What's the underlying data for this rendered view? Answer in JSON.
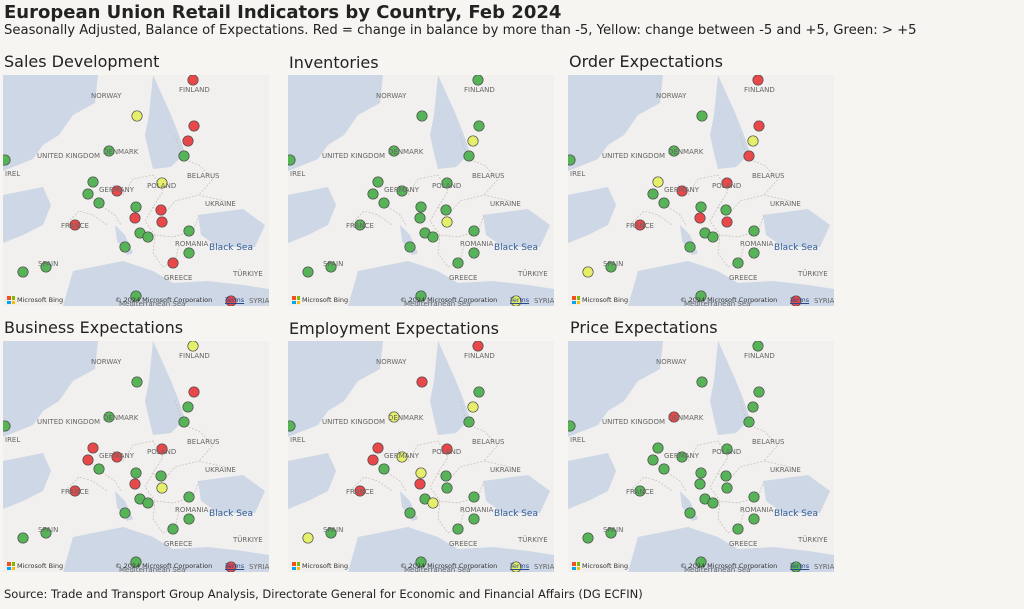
{
  "title": "European Union Retail Indicators by Country, Feb 2024",
  "subtitle": "Seasonally Adjusted, Balance of Expectations. Red = change in balance by more than -5, Yellow: change between -5 and +5, Green: > +5",
  "source": "Source: Trade and Transport Group Analysis, Directorate General for Economic and Financial Affairs (DG ECFIN)",
  "colors": {
    "red": "#e8484a",
    "yellow": "#e5ef6a",
    "green": "#57b357",
    "sea": "#cdd7e5",
    "land": "#f1f0ee"
  },
  "map_labels": {
    "norway": "NORWAY",
    "finland": "FINLAND",
    "united_kingdom": "UNITED KINGDOM",
    "ireland": "IREL",
    "denmark": "DENMARK",
    "germany": "GERMANY",
    "poland": "POLAND",
    "belarus": "BELARUS",
    "ukraine": "UKRAINE",
    "france": "FRANCE",
    "romania": "ROMANIA",
    "spain": "SPAIN",
    "greece": "GREECE",
    "turkiye": "TÜRKIYE",
    "syria": "SYRIA",
    "black_sea": "Black Sea",
    "mediterranean": "Mediterranean Sea"
  },
  "map_footer": {
    "bing": "Microsoft Bing",
    "copyright": "© 2024 Microsoft Corporation",
    "terms": "Terms"
  },
  "panels": [
    {
      "name": "Sales Development",
      "markers": [
        {
          "country": "Finland",
          "status": "red"
        },
        {
          "country": "Sweden",
          "status": "yellow"
        },
        {
          "country": "Estonia",
          "status": "red"
        },
        {
          "country": "Latvia",
          "status": "red"
        },
        {
          "country": "Lithuania",
          "status": "green"
        },
        {
          "country": "Denmark",
          "status": "green"
        },
        {
          "country": "Ireland",
          "status": "green"
        },
        {
          "country": "Netherlands",
          "status": "green"
        },
        {
          "country": "Belgium",
          "status": "green"
        },
        {
          "country": "Luxembourg",
          "status": "green"
        },
        {
          "country": "Germany",
          "status": "red"
        },
        {
          "country": "Poland",
          "status": "yellow"
        },
        {
          "country": "Czechia",
          "status": "green"
        },
        {
          "country": "Slovakia",
          "status": "red"
        },
        {
          "country": "Austria",
          "status": "red"
        },
        {
          "country": "Hungary",
          "status": "red"
        },
        {
          "country": "Slovenia",
          "status": "green"
        },
        {
          "country": "Croatia",
          "status": "green"
        },
        {
          "country": "Romania",
          "status": "green"
        },
        {
          "country": "France",
          "status": "red"
        },
        {
          "country": "Italy",
          "status": "green"
        },
        {
          "country": "Bulgaria",
          "status": "green"
        },
        {
          "country": "Greece",
          "status": "red"
        },
        {
          "country": "Spain",
          "status": "green"
        },
        {
          "country": "Portugal",
          "status": "green"
        },
        {
          "country": "Malta",
          "status": "green"
        },
        {
          "country": "Cyprus",
          "status": "red"
        }
      ]
    },
    {
      "name": "Inventories",
      "markers": [
        {
          "country": "Finland",
          "status": "green"
        },
        {
          "country": "Sweden",
          "status": "green"
        },
        {
          "country": "Estonia",
          "status": "green"
        },
        {
          "country": "Latvia",
          "status": "yellow"
        },
        {
          "country": "Lithuania",
          "status": "green"
        },
        {
          "country": "Denmark",
          "status": "green"
        },
        {
          "country": "Ireland",
          "status": "green"
        },
        {
          "country": "Netherlands",
          "status": "green"
        },
        {
          "country": "Belgium",
          "status": "green"
        },
        {
          "country": "Luxembourg",
          "status": "green"
        },
        {
          "country": "Germany",
          "status": "green"
        },
        {
          "country": "Poland",
          "status": "green"
        },
        {
          "country": "Czechia",
          "status": "green"
        },
        {
          "country": "Slovakia",
          "status": "green"
        },
        {
          "country": "Austria",
          "status": "green"
        },
        {
          "country": "Hungary",
          "status": "yellow"
        },
        {
          "country": "Slovenia",
          "status": "green"
        },
        {
          "country": "Croatia",
          "status": "green"
        },
        {
          "country": "Romania",
          "status": "green"
        },
        {
          "country": "France",
          "status": "green"
        },
        {
          "country": "Italy",
          "status": "green"
        },
        {
          "country": "Bulgaria",
          "status": "green"
        },
        {
          "country": "Greece",
          "status": "green"
        },
        {
          "country": "Spain",
          "status": "green"
        },
        {
          "country": "Portugal",
          "status": "green"
        },
        {
          "country": "Malta",
          "status": "green"
        },
        {
          "country": "Cyprus",
          "status": "yellow"
        }
      ]
    },
    {
      "name": "Order Expectations",
      "markers": [
        {
          "country": "Finland",
          "status": "red"
        },
        {
          "country": "Sweden",
          "status": "green"
        },
        {
          "country": "Estonia",
          "status": "red"
        },
        {
          "country": "Latvia",
          "status": "yellow"
        },
        {
          "country": "Lithuania",
          "status": "red"
        },
        {
          "country": "Denmark",
          "status": "green"
        },
        {
          "country": "Ireland",
          "status": "green"
        },
        {
          "country": "Netherlands",
          "status": "yellow"
        },
        {
          "country": "Belgium",
          "status": "green"
        },
        {
          "country": "Luxembourg",
          "status": "green"
        },
        {
          "country": "Germany",
          "status": "red"
        },
        {
          "country": "Poland",
          "status": "red"
        },
        {
          "country": "Czechia",
          "status": "green"
        },
        {
          "country": "Slovakia",
          "status": "green"
        },
        {
          "country": "Austria",
          "status": "red"
        },
        {
          "country": "Hungary",
          "status": "red"
        },
        {
          "country": "Slovenia",
          "status": "green"
        },
        {
          "country": "Croatia",
          "status": "green"
        },
        {
          "country": "Romania",
          "status": "green"
        },
        {
          "country": "France",
          "status": "red"
        },
        {
          "country": "Italy",
          "status": "green"
        },
        {
          "country": "Bulgaria",
          "status": "green"
        },
        {
          "country": "Greece",
          "status": "green"
        },
        {
          "country": "Spain",
          "status": "green"
        },
        {
          "country": "Portugal",
          "status": "yellow"
        },
        {
          "country": "Malta",
          "status": "green"
        },
        {
          "country": "Cyprus",
          "status": "red"
        }
      ]
    },
    {
      "name": "Business Expectations",
      "markers": [
        {
          "country": "Finland",
          "status": "yellow"
        },
        {
          "country": "Sweden",
          "status": "green"
        },
        {
          "country": "Estonia",
          "status": "red"
        },
        {
          "country": "Latvia",
          "status": "green"
        },
        {
          "country": "Lithuania",
          "status": "green"
        },
        {
          "country": "Denmark",
          "status": "green"
        },
        {
          "country": "Ireland",
          "status": "green"
        },
        {
          "country": "Netherlands",
          "status": "red"
        },
        {
          "country": "Belgium",
          "status": "red"
        },
        {
          "country": "Luxembourg",
          "status": "green"
        },
        {
          "country": "Germany",
          "status": "red"
        },
        {
          "country": "Poland",
          "status": "red"
        },
        {
          "country": "Czechia",
          "status": "green"
        },
        {
          "country": "Slovakia",
          "status": "green"
        },
        {
          "country": "Austria",
          "status": "red"
        },
        {
          "country": "Hungary",
          "status": "yellow"
        },
        {
          "country": "Slovenia",
          "status": "green"
        },
        {
          "country": "Croatia",
          "status": "green"
        },
        {
          "country": "Romania",
          "status": "green"
        },
        {
          "country": "France",
          "status": "red"
        },
        {
          "country": "Italy",
          "status": "green"
        },
        {
          "country": "Bulgaria",
          "status": "green"
        },
        {
          "country": "Greece",
          "status": "green"
        },
        {
          "country": "Spain",
          "status": "green"
        },
        {
          "country": "Portugal",
          "status": "green"
        },
        {
          "country": "Malta",
          "status": "green"
        },
        {
          "country": "Cyprus",
          "status": "red"
        }
      ]
    },
    {
      "name": "Employment Expectations",
      "markers": [
        {
          "country": "Finland",
          "status": "red"
        },
        {
          "country": "Sweden",
          "status": "red"
        },
        {
          "country": "Estonia",
          "status": "green"
        },
        {
          "country": "Latvia",
          "status": "yellow"
        },
        {
          "country": "Lithuania",
          "status": "green"
        },
        {
          "country": "Denmark",
          "status": "yellow"
        },
        {
          "country": "Ireland",
          "status": "green"
        },
        {
          "country": "Netherlands",
          "status": "red"
        },
        {
          "country": "Belgium",
          "status": "red"
        },
        {
          "country": "Luxembourg",
          "status": "green"
        },
        {
          "country": "Germany",
          "status": "yellow"
        },
        {
          "country": "Poland",
          "status": "red"
        },
        {
          "country": "Czechia",
          "status": "yellow"
        },
        {
          "country": "Slovakia",
          "status": "green"
        },
        {
          "country": "Austria",
          "status": "red"
        },
        {
          "country": "Hungary",
          "status": "green"
        },
        {
          "country": "Slovenia",
          "status": "green"
        },
        {
          "country": "Croatia",
          "status": "yellow"
        },
        {
          "country": "Romania",
          "status": "green"
        },
        {
          "country": "France",
          "status": "red"
        },
        {
          "country": "Italy",
          "status": "green"
        },
        {
          "country": "Bulgaria",
          "status": "green"
        },
        {
          "country": "Greece",
          "status": "green"
        },
        {
          "country": "Spain",
          "status": "green"
        },
        {
          "country": "Portugal",
          "status": "yellow"
        },
        {
          "country": "Malta",
          "status": "green"
        },
        {
          "country": "Cyprus",
          "status": "yellow"
        }
      ]
    },
    {
      "name": "Price Expectations",
      "markers": [
        {
          "country": "Finland",
          "status": "green"
        },
        {
          "country": "Sweden",
          "status": "green"
        },
        {
          "country": "Estonia",
          "status": "green"
        },
        {
          "country": "Latvia",
          "status": "green"
        },
        {
          "country": "Lithuania",
          "status": "green"
        },
        {
          "country": "Denmark",
          "status": "red"
        },
        {
          "country": "Ireland",
          "status": "green"
        },
        {
          "country": "Netherlands",
          "status": "green"
        },
        {
          "country": "Belgium",
          "status": "green"
        },
        {
          "country": "Luxembourg",
          "status": "green"
        },
        {
          "country": "Germany",
          "status": "green"
        },
        {
          "country": "Poland",
          "status": "green"
        },
        {
          "country": "Czechia",
          "status": "green"
        },
        {
          "country": "Slovakia",
          "status": "green"
        },
        {
          "country": "Austria",
          "status": "green"
        },
        {
          "country": "Hungary",
          "status": "green"
        },
        {
          "country": "Slovenia",
          "status": "green"
        },
        {
          "country": "Croatia",
          "status": "green"
        },
        {
          "country": "Romania",
          "status": "green"
        },
        {
          "country": "France",
          "status": "green"
        },
        {
          "country": "Italy",
          "status": "green"
        },
        {
          "country": "Bulgaria",
          "status": "green"
        },
        {
          "country": "Greece",
          "status": "green"
        },
        {
          "country": "Spain",
          "status": "green"
        },
        {
          "country": "Portugal",
          "status": "green"
        },
        {
          "country": "Malta",
          "status": "green"
        },
        {
          "country": "Cyprus",
          "status": "green"
        }
      ]
    }
  ]
}
